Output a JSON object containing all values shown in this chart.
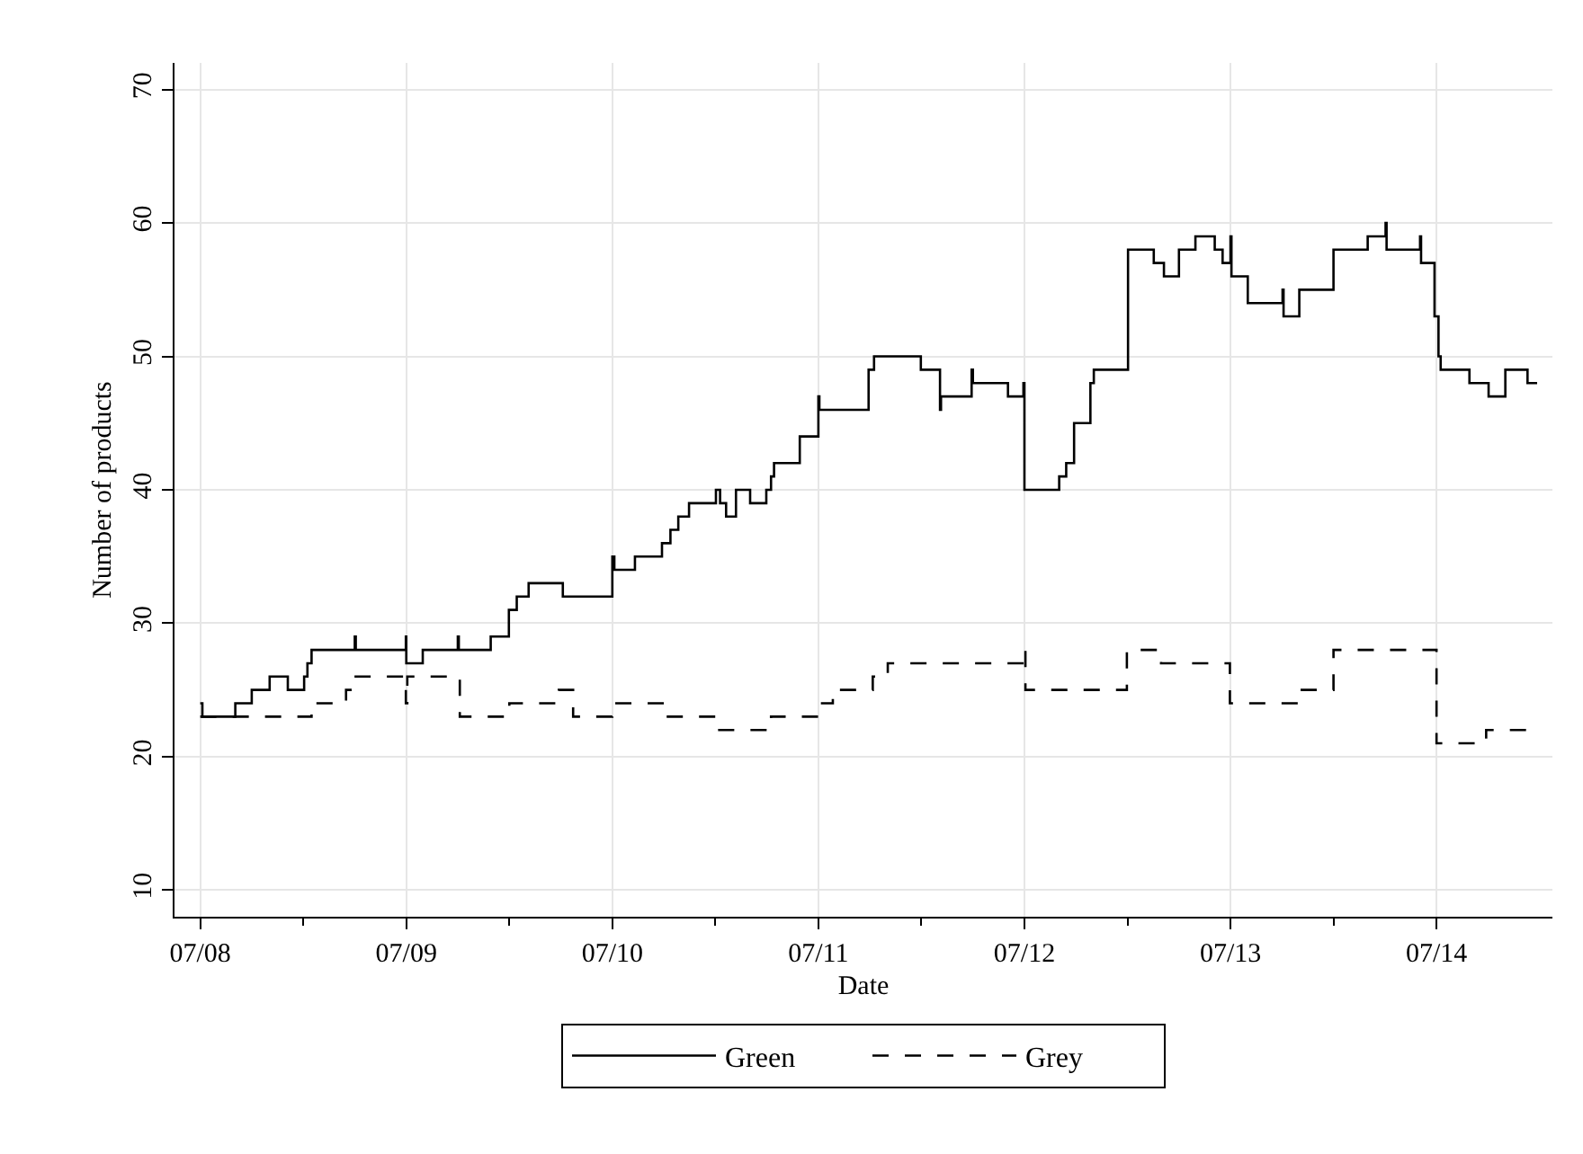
{
  "chart_data": {
    "type": "step",
    "xlabel": "Date",
    "ylabel": "Number of products",
    "xlim": [
      "--07-07T21:00",
      "--07-14T13:30"
    ],
    "ylim": [
      8,
      72
    ],
    "xticks": [
      {
        "value": "--07-08",
        "label": "07/08"
      },
      {
        "value": "--07-08T12:00",
        "label": null
      },
      {
        "value": "--07-09",
        "label": "07/09"
      },
      {
        "value": "--07-09T12:00",
        "label": null
      },
      {
        "value": "--07-10",
        "label": "07/10"
      },
      {
        "value": "--07-10T12:00",
        "label": null
      },
      {
        "value": "--07-11",
        "label": "07/11"
      },
      {
        "value": "--07-11T12:00",
        "label": null
      },
      {
        "value": "--07-12",
        "label": "07/12"
      },
      {
        "value": "--07-12T12:00",
        "label": null
      },
      {
        "value": "--07-13",
        "label": "07/13"
      },
      {
        "value": "--07-13T12:00",
        "label": null
      },
      {
        "value": "--07-14",
        "label": "07/14"
      }
    ],
    "yticks": [
      10,
      20,
      30,
      40,
      50,
      60,
      70
    ],
    "grid": true,
    "legend": "bottom",
    "series": [
      {
        "name": "Green",
        "color": "#000000",
        "line_style": "solid",
        "x": [
          "--07-08T00:00",
          "--07-08T00:15",
          "--07-08T04:05",
          "--07-08T06:00",
          "--07-08T08:05",
          "--07-08T10:12",
          "--07-08T12:06",
          "--07-08T12:29",
          "--07-08T12:58",
          "--07-08T18:00",
          "--07-08T18:07",
          "--07-08T23:57",
          "--07-09T00:00",
          "--07-09T01:55",
          "--07-09T06:00",
          "--07-09T06:07",
          "--07-09T09:50",
          "--07-09T11:57",
          "--07-09T12:52",
          "--07-09T14:15",
          "--07-09T18:14",
          "--07-10T00:00",
          "--07-10T00:14",
          "--07-10T02:38",
          "--07-10T05:47",
          "--07-10T06:46",
          "--07-10T07:41",
          "--07-10T08:56",
          "--07-10T12:04",
          "--07-10T12:33",
          "--07-10T13:15",
          "--07-10T14:24",
          "--07-10T16:03",
          "--07-10T17:56",
          "--07-10T18:29",
          "--07-10T18:50",
          "--07-10T21:50",
          "--07-11T00:00",
          "--07-11T00:07",
          "--07-11T05:51",
          "--07-11T06:29",
          "--07-11T11:56",
          "--07-11T14:10",
          "--07-11T14:17",
          "--07-11T17:51",
          "--07-11T18:00",
          "--07-11T22:05",
          "--07-11T23:53",
          "--07-12T00:00",
          "--07-12T04:03",
          "--07-12T04:52",
          "--07-12T05:47",
          "--07-12T07:41",
          "--07-12T08:05",
          "--07-12T12:04",
          "--07-12T15:04",
          "--07-12T16:15",
          "--07-12T18:00",
          "--07-12T19:55",
          "--07-12T22:10",
          "--07-12T23:05",
          "--07-13T00:00",
          "--07-13T00:07",
          "--07-13T02:01",
          "--07-13T06:04",
          "--07-13T06:11",
          "--07-13T08:01",
          "--07-13T12:00",
          "--07-13T15:59",
          "--07-13T18:04",
          "--07-13T18:11",
          "--07-13T22:05",
          "--07-13T22:12",
          "--07-13T23:46",
          "--07-14T00:14",
          "--07-14T00:29",
          "--07-14T03:50",
          "--07-14T06:04",
          "--07-14T08:01",
          "--07-14T10:36",
          "--07-14T11:43"
        ],
        "values": [
          24,
          23,
          24,
          25,
          26,
          25,
          26,
          27,
          28,
          29,
          28,
          29,
          27,
          28,
          29,
          28,
          29,
          31,
          32,
          33,
          32,
          35,
          34,
          35,
          36,
          37,
          38,
          39,
          40,
          39,
          38,
          40,
          39,
          40,
          41,
          42,
          44,
          47,
          46,
          49,
          50,
          49,
          46,
          47,
          49,
          48,
          47,
          48,
          40,
          41,
          42,
          45,
          48,
          49,
          58,
          57,
          56,
          58,
          59,
          58,
          57,
          59,
          56,
          54,
          55,
          53,
          55,
          58,
          59,
          60,
          58,
          59,
          57,
          53,
          50,
          49,
          48,
          47,
          49,
          48,
          48
        ]
      },
      {
        "name": "Grey",
        "color": "#000000",
        "line_style": "dashed",
        "x": [
          "--07-08T00:00",
          "--07-08T12:58",
          "--07-08T16:59",
          "--07-08T17:53",
          "--07-08T23:57",
          "--07-09T00:07",
          "--07-09T06:14",
          "--07-09T12:00",
          "--07-09T17:46",
          "--07-09T19:26",
          "--07-10T00:00",
          "--07-10T06:14",
          "--07-10T12:04",
          "--07-10T18:29",
          "--07-11T00:00",
          "--07-11T01:41",
          "--07-11T06:20",
          "--07-11T08:05",
          "--07-12T00:00",
          "--07-12T00:07",
          "--07-12T11:56",
          "--07-12T15:55",
          "--07-12T23:56",
          "--07-13T07:55",
          "--07-13T12:00",
          "--07-14T00:00",
          "--07-14T05:47",
          "--07-14T10:48"
        ],
        "values": [
          23,
          24,
          25,
          26,
          24,
          26,
          23,
          24,
          25,
          23,
          24,
          23,
          22,
          23,
          24,
          25,
          26,
          27,
          28,
          25,
          28,
          27,
          24,
          25,
          28,
          21,
          22,
          22
        ]
      }
    ]
  }
}
